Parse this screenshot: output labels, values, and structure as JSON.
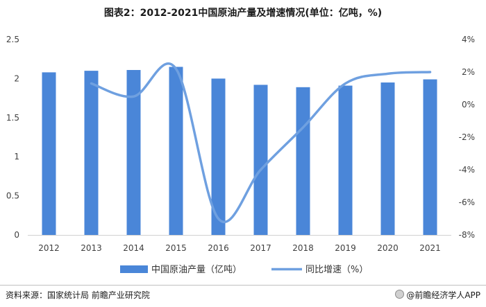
{
  "header": {
    "title": "图表2：2012-2021中国原油产量及增速情况(单位：亿吨，%)"
  },
  "footer": {
    "source": "资料来源：国家统计局 前瞻产业研究院",
    "brand": "@前瞻经济学人APP"
  },
  "chart_data": {
    "type": "bar",
    "title": "图表2：2012-2021中国原油产量及增速情况(单位：亿吨，%)",
    "categories": [
      "2012",
      "2013",
      "2014",
      "2015",
      "2016",
      "2017",
      "2018",
      "2019",
      "2020",
      "2021"
    ],
    "series": [
      {
        "name": "中国原油产量（亿吨）",
        "type": "bar",
        "axis": "left",
        "color": "#4a86d8",
        "values": [
          2.08,
          2.1,
          2.11,
          2.15,
          2.0,
          1.92,
          1.89,
          1.91,
          1.95,
          1.99
        ]
      },
      {
        "name": "同比增速（%）",
        "type": "line",
        "axis": "right",
        "color": "#6fa0e0",
        "values": [
          null,
          1.3,
          0.5,
          2.2,
          -7.0,
          -4.0,
          -1.4,
          1.3,
          1.9,
          2.0
        ]
      }
    ],
    "left_axis": {
      "ylim": [
        0,
        2.5
      ],
      "ticks": [
        "0",
        "0.5",
        "1",
        "1.5",
        "2",
        "2.5"
      ]
    },
    "right_axis": {
      "ylim": [
        -8,
        4
      ],
      "ticks": [
        "-8%",
        "-6%",
        "-4%",
        "-2%",
        "0%",
        "2%",
        "4%"
      ]
    },
    "grid": false,
    "legend_position": "bottom"
  }
}
